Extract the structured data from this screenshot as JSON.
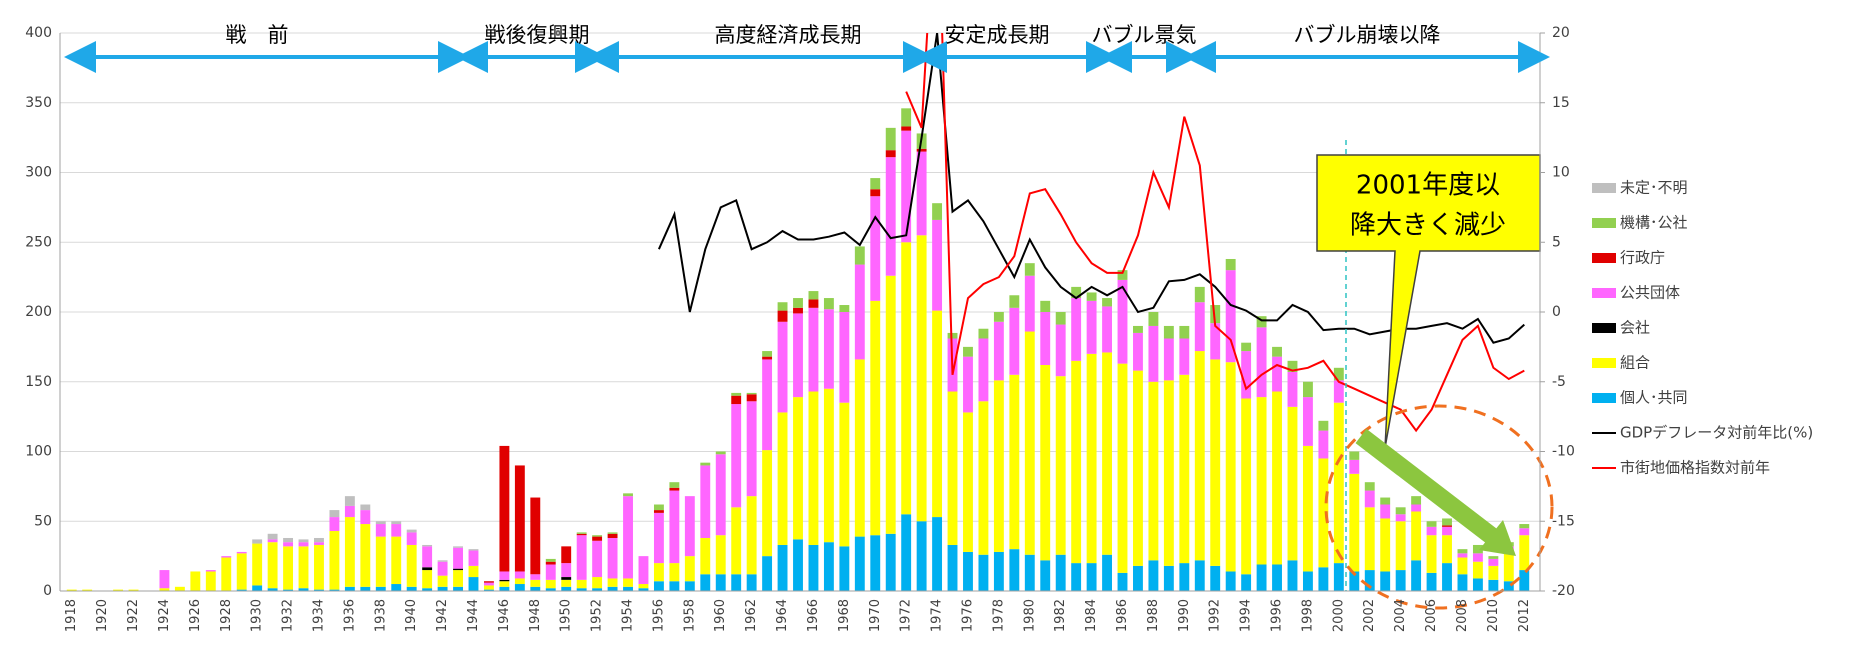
{
  "chart_data": {
    "type": "bar",
    "eras": [
      "戦　前",
      "戦後復興期",
      "高度経済成長期",
      "安定成長期",
      "バブル景気",
      "バブル崩壊以降"
    ],
    "callout": [
      "2001年度以",
      "降大きく減少"
    ],
    "categories": [
      "1918",
      null,
      "1920",
      null,
      "1922",
      null,
      "1924",
      null,
      "1926",
      null,
      "1928",
      null,
      "1930",
      null,
      "1932",
      null,
      "1934",
      null,
      "1936",
      null,
      "1938",
      null,
      "1940",
      null,
      "1942",
      null,
      "1944",
      null,
      "1946",
      null,
      "1948",
      null,
      "1950",
      null,
      "1952",
      null,
      "1954",
      null,
      "1956",
      null,
      "1958",
      null,
      "1960",
      null,
      "1962",
      null,
      "1964",
      null,
      "1966",
      null,
      "1968",
      null,
      "1970",
      null,
      "1972",
      null,
      "1974",
      null,
      "1976",
      null,
      "1978",
      null,
      "1980",
      null,
      "1982",
      null,
      "1984",
      null,
      "1986",
      null,
      "1988",
      null,
      "1990",
      null,
      "1992",
      null,
      "1994",
      null,
      "1996",
      null,
      "1998",
      null,
      "2000",
      null,
      "2002",
      null,
      "2004",
      null,
      "2006",
      null,
      "2008",
      null,
      "2010",
      null,
      "2012"
    ],
    "series": [
      {
        "name": "個人･共同",
        "color": "#00b0f0",
        "type": "bar",
        "values": [
          0,
          0,
          0,
          0,
          0,
          0,
          0,
          0,
          0,
          0,
          0,
          1,
          4,
          2,
          1,
          2,
          1,
          1,
          3,
          3,
          3,
          5,
          3,
          2,
          3,
          3,
          10,
          1,
          3,
          5,
          3,
          2,
          3,
          2,
          2,
          3,
          3,
          2,
          7,
          7,
          7,
          12,
          12,
          12,
          12,
          25,
          33,
          37,
          33,
          35,
          32,
          39,
          40,
          41,
          55,
          50,
          53,
          33,
          28,
          26,
          28,
          30,
          26,
          22,
          26,
          20,
          20,
          26,
          13,
          18,
          22,
          18,
          20,
          22,
          18,
          14,
          12,
          19,
          19,
          22,
          14,
          17,
          20,
          14,
          15,
          14,
          15,
          22,
          13,
          20,
          12,
          9,
          8,
          7,
          15
        ]
      },
      {
        "name": "組合",
        "color": "#ffff00",
        "type": "bar",
        "values": [
          1,
          1,
          0,
          1,
          1,
          0,
          2,
          3,
          14,
          14,
          24,
          26,
          30,
          33,
          31,
          30,
          32,
          42,
          50,
          45,
          36,
          34,
          30,
          13,
          8,
          12,
          8,
          3,
          4,
          4,
          5,
          6,
          5,
          6,
          8,
          6,
          6,
          3,
          13,
          13,
          18,
          26,
          28,
          48,
          56,
          76,
          95,
          102,
          110,
          110,
          103,
          127,
          168,
          185,
          195,
          205,
          148,
          110,
          100,
          110,
          123,
          125,
          160,
          140,
          128,
          145,
          150,
          145,
          150,
          140,
          128,
          133,
          135,
          150,
          148,
          150,
          126,
          120,
          124,
          110,
          90,
          78,
          115,
          70,
          45,
          38,
          35,
          35,
          27,
          20,
          12,
          12,
          10,
          20,
          25
        ]
      },
      {
        "name": "会社",
        "color": "#000000",
        "type": "bar",
        "values": [
          0,
          0,
          0,
          0,
          0,
          0,
          0,
          0,
          0,
          0,
          0,
          0,
          0,
          0,
          0,
          0,
          0,
          0,
          0,
          0,
          0,
          0,
          0,
          2,
          0,
          1,
          0,
          0,
          1,
          0,
          0,
          0,
          2,
          0,
          0,
          0,
          0,
          0,
          0,
          0,
          0,
          0,
          0,
          0,
          0,
          0,
          0,
          0,
          0,
          0,
          0,
          0,
          0,
          0,
          0,
          0,
          0,
          0,
          0,
          0,
          0,
          0,
          0,
          0,
          0,
          0,
          0,
          0,
          0,
          0,
          0,
          0,
          0,
          0,
          0,
          0,
          0,
          0,
          0,
          0,
          0,
          0,
          0,
          0,
          0,
          0,
          0,
          0,
          0,
          0,
          0,
          0,
          0,
          0,
          0
        ]
      },
      {
        "name": "公共団体",
        "color": "#ff66ff",
        "type": "bar",
        "values": [
          0,
          0,
          0,
          0,
          0,
          0,
          13,
          0,
          0,
          1,
          1,
          1,
          0,
          2,
          3,
          3,
          2,
          10,
          8,
          10,
          9,
          9,
          9,
          15,
          10,
          15,
          11,
          2,
          6,
          5,
          4,
          11,
          10,
          32,
          26,
          29,
          59,
          20,
          36,
          52,
          43,
          52,
          58,
          74,
          68,
          65,
          65,
          60,
          60,
          57,
          65,
          68,
          75,
          85,
          80,
          60,
          65,
          38,
          40,
          45,
          42,
          48,
          40,
          38,
          37,
          45,
          38,
          33,
          60,
          27,
          40,
          30,
          26,
          35,
          26,
          66,
          34,
          50,
          25,
          25,
          35,
          20,
          16,
          10,
          12,
          10,
          5,
          5,
          6,
          6,
          3,
          6,
          5,
          5,
          5
        ]
      },
      {
        "name": "行政庁",
        "color": "#e00000",
        "type": "bar",
        "values": [
          0,
          0,
          0,
          0,
          0,
          0,
          0,
          0,
          0,
          0,
          0,
          0,
          0,
          0,
          0,
          0,
          0,
          0,
          0,
          0,
          0,
          0,
          0,
          0,
          0,
          0,
          0,
          1,
          90,
          76,
          55,
          2,
          12,
          1,
          3,
          3,
          0,
          0,
          2,
          2,
          0,
          0,
          0,
          6,
          5,
          2,
          8,
          4,
          6,
          0,
          0,
          0,
          5,
          5,
          3,
          2,
          0,
          0,
          0,
          0,
          0,
          0,
          0,
          0,
          0,
          0,
          0,
          0,
          0,
          0,
          0,
          0,
          0,
          0,
          0,
          0,
          0,
          0,
          0,
          0,
          0,
          0,
          0,
          0,
          0,
          0,
          0,
          0,
          0,
          1,
          0,
          0,
          0,
          0,
          0
        ]
      },
      {
        "name": "機構･公社",
        "color": "#92d050",
        "type": "bar",
        "values": [
          0,
          0,
          0,
          0,
          0,
          0,
          0,
          0,
          0,
          0,
          0,
          0,
          0,
          0,
          0,
          0,
          0,
          0,
          0,
          0,
          0,
          0,
          0,
          0,
          0,
          0,
          0,
          0,
          0,
          0,
          0,
          2,
          0,
          1,
          1,
          1,
          2,
          0,
          4,
          4,
          0,
          2,
          2,
          2,
          1,
          4,
          6,
          7,
          6,
          8,
          5,
          13,
          8,
          16,
          13,
          11,
          12,
          4,
          7,
          7,
          7,
          9,
          9,
          8,
          9,
          8,
          6,
          6,
          7,
          5,
          10,
          9,
          9,
          11,
          13,
          8,
          6,
          8,
          7,
          8,
          11,
          7,
          9,
          6,
          6,
          5,
          5,
          6,
          4,
          5,
          3,
          6,
          2,
          3,
          3
        ]
      },
      {
        "name": "未定･不明",
        "color": "#bfbfbf",
        "type": "bar",
        "values": [
          0,
          0,
          0,
          0,
          0,
          0,
          0,
          0,
          0,
          0,
          0,
          0,
          3,
          4,
          3,
          2,
          3,
          5,
          7,
          4,
          2,
          2,
          2,
          1,
          1,
          1,
          1,
          0,
          0,
          0,
          0,
          0,
          0,
          0,
          0,
          0,
          0,
          0,
          0,
          0,
          0,
          0,
          0,
          0,
          0,
          0,
          0,
          0,
          0,
          0,
          0,
          0,
          0,
          0,
          0,
          0,
          0,
          0,
          0,
          0,
          0,
          0,
          0,
          0,
          0,
          0,
          0,
          0,
          0,
          0,
          0,
          0,
          0,
          0,
          0,
          0,
          0,
          0,
          0,
          0,
          0,
          0,
          0,
          0,
          0,
          0,
          0,
          0,
          0,
          0,
          0,
          0,
          0,
          0,
          0
        ]
      },
      {
        "name": "GDPデフレータ対前年比(%)",
        "color": "#000000",
        "type": "line",
        "axis": "y2",
        "values": [
          null,
          null,
          null,
          null,
          null,
          null,
          null,
          null,
          null,
          null,
          null,
          null,
          null,
          null,
          null,
          null,
          null,
          null,
          null,
          null,
          null,
          null,
          null,
          null,
          null,
          null,
          null,
          null,
          null,
          null,
          null,
          null,
          null,
          null,
          null,
          null,
          null,
          null,
          4.5,
          7,
          0,
          4.5,
          7.5,
          8,
          4.5,
          5,
          5.8,
          5.2,
          5.2,
          5.4,
          5.7,
          4.8,
          6.8,
          5.3,
          5.5,
          12.5,
          20,
          7.2,
          8,
          6.5,
          4.5,
          2.5,
          5.2,
          3.2,
          1.8,
          1,
          1.8,
          1.2,
          1.8,
          0,
          0.3,
          2.2,
          2.3,
          2.7,
          1.8,
          0.5,
          0.1,
          -0.6,
          -0.6,
          0.5,
          0,
          -1.3,
          -1.2,
          -1.2,
          -1.6,
          -1.4,
          -1.2,
          -1.2,
          -1,
          -0.8,
          -1.2,
          -0.5,
          -2.2,
          -1.9,
          -0.9
        ]
      },
      {
        "name": "市街地価格指数対前年",
        "color": "#ff0000",
        "type": "line",
        "axis": "y2",
        "values": [
          null,
          null,
          null,
          null,
          null,
          null,
          null,
          null,
          null,
          null,
          null,
          null,
          null,
          null,
          null,
          null,
          null,
          null,
          null,
          null,
          null,
          null,
          null,
          null,
          null,
          null,
          null,
          null,
          null,
          null,
          null,
          null,
          null,
          null,
          null,
          null,
          null,
          null,
          null,
          null,
          null,
          null,
          null,
          null,
          null,
          null,
          null,
          null,
          null,
          null,
          null,
          null,
          null,
          null,
          15.8,
          13.2,
          32,
          -4.5,
          1,
          2,
          2.5,
          4,
          8.5,
          8.8,
          7,
          5,
          3.5,
          2.8,
          2.8,
          5.5,
          10,
          7.5,
          14,
          10.5,
          -1,
          -2,
          -5.5,
          -4.5,
          -3.8,
          -4.2,
          -4,
          -3.5,
          -5,
          -5.5,
          -6,
          -6.5,
          -7,
          -8.5,
          -7,
          -4.5,
          -2,
          -1,
          -4,
          -4.8,
          -4.2
        ]
      }
    ],
    "ylim": [
      0,
      400
    ],
    "yticks": [
      0,
      50,
      100,
      150,
      200,
      250,
      300,
      350,
      400
    ],
    "y2lim": [
      -20,
      20
    ],
    "y2ticks": [
      -20,
      -15,
      -10,
      -5,
      0,
      5,
      10,
      15,
      20
    ],
    "grid": true,
    "legend": "right"
  }
}
